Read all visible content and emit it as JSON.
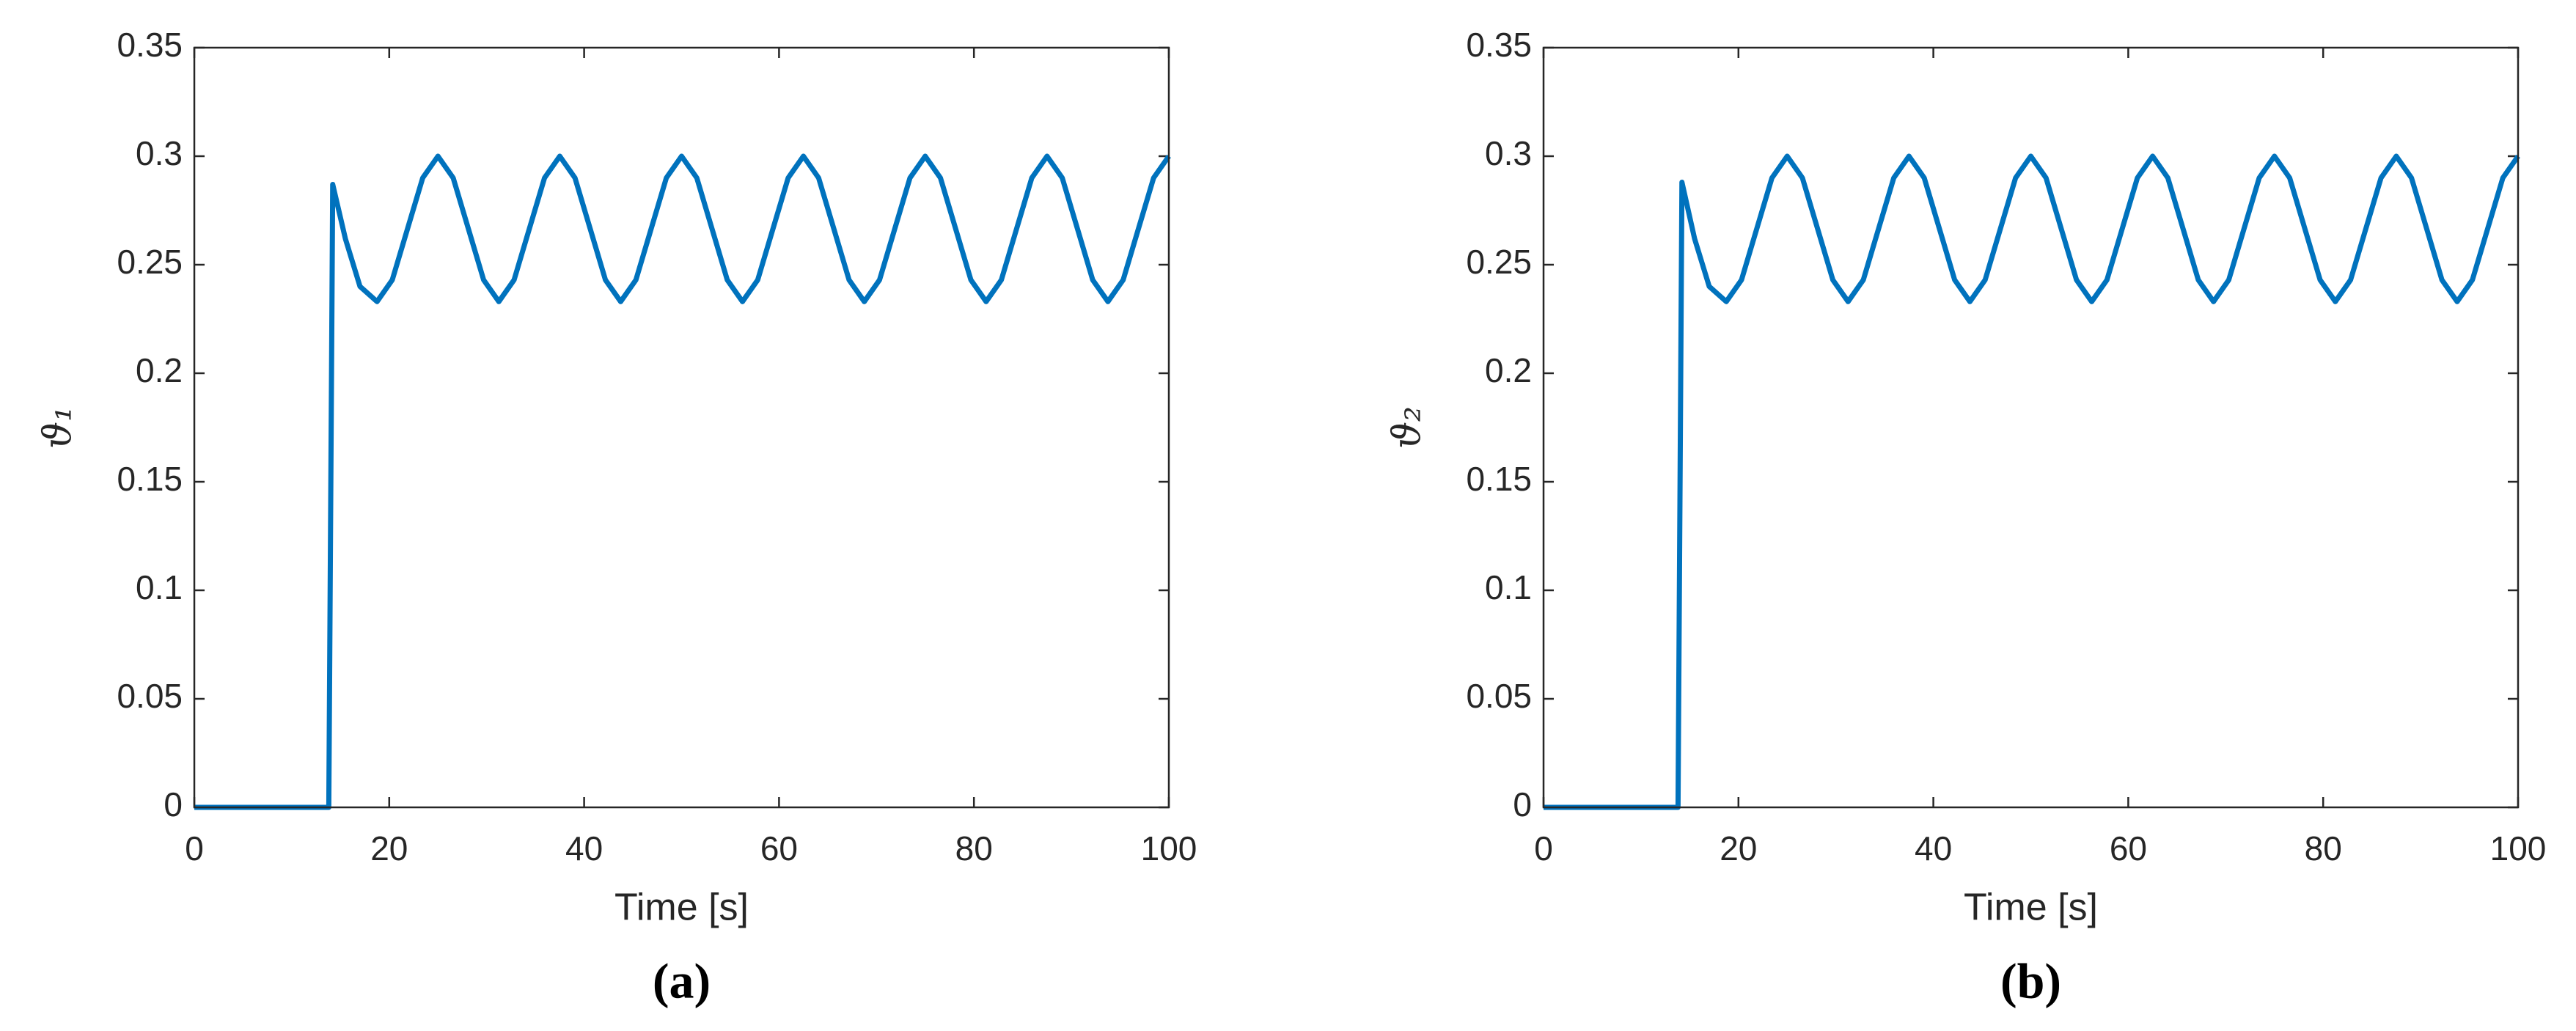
{
  "chart_data": [
    {
      "type": "line",
      "caption": "(a)",
      "xlabel": "Time [s]",
      "ylabel": "ϑ₁",
      "color": "#0072bd",
      "xlim": [
        0,
        100
      ],
      "xticks": [
        0,
        20,
        40,
        60,
        80,
        100
      ],
      "ylim": [
        0,
        0.35
      ],
      "yticks": [
        0,
        0.05,
        0.1,
        0.15,
        0.2,
        0.25,
        0.3,
        0.35
      ],
      "grid": false,
      "x": [
        0,
        13.8,
        14.2,
        15.5,
        17,
        18.75,
        20.3125,
        21.875,
        23.4375,
        25,
        26.5625,
        28.125,
        29.6875,
        31.25,
        32.8125,
        34.375,
        35.9375,
        37.5,
        39.0625,
        40.625,
        42.1875,
        43.75,
        45.3125,
        46.875,
        48.4375,
        50,
        51.5625,
        53.125,
        54.6875,
        56.25,
        57.8125,
        59.375,
        60.9375,
        62.5,
        64.0625,
        65.625,
        67.1875,
        68.75,
        70.3125,
        71.875,
        73.4375,
        75,
        76.5625,
        78.125,
        79.6875,
        81.25,
        82.8125,
        84.375,
        85.9375,
        87.5,
        89.0625,
        90.625,
        92.1875,
        93.75,
        95.3125,
        96.875,
        98.4375,
        100
      ],
      "values": [
        0,
        0,
        0.287,
        0.262,
        0.24,
        0.233,
        0.243,
        0.2665,
        0.29,
        0.3,
        0.29,
        0.2665,
        0.243,
        0.233,
        0.243,
        0.2665,
        0.29,
        0.3,
        0.29,
        0.2665,
        0.243,
        0.233,
        0.243,
        0.2665,
        0.29,
        0.3,
        0.29,
        0.2665,
        0.243,
        0.233,
        0.243,
        0.2665,
        0.29,
        0.3,
        0.29,
        0.2665,
        0.243,
        0.233,
        0.243,
        0.2665,
        0.29,
        0.3,
        0.29,
        0.2665,
        0.243,
        0.233,
        0.243,
        0.2665,
        0.29,
        0.3,
        0.29,
        0.2665,
        0.243,
        0.233,
        0.243,
        0.2665,
        0.29,
        0.3
      ]
    },
    {
      "type": "line",
      "caption": "(b)",
      "xlabel": "Time [s]",
      "ylabel": "ϑ₂",
      "color": "#0072bd",
      "xlim": [
        0,
        100
      ],
      "xticks": [
        0,
        20,
        40,
        60,
        80,
        100
      ],
      "ylim": [
        0,
        0.35
      ],
      "yticks": [
        0,
        0.05,
        0.1,
        0.15,
        0.2,
        0.25,
        0.3,
        0.35
      ],
      "grid": false,
      "x": [
        0,
        13.8,
        14.2,
        15.5,
        17,
        18.75,
        20.3125,
        21.875,
        23.4375,
        25,
        26.5625,
        28.125,
        29.6875,
        31.25,
        32.8125,
        34.375,
        35.9375,
        37.5,
        39.0625,
        40.625,
        42.1875,
        43.75,
        45.3125,
        46.875,
        48.4375,
        50,
        51.5625,
        53.125,
        54.6875,
        56.25,
        57.8125,
        59.375,
        60.9375,
        62.5,
        64.0625,
        65.625,
        67.1875,
        68.75,
        70.3125,
        71.875,
        73.4375,
        75,
        76.5625,
        78.125,
        79.6875,
        81.25,
        82.8125,
        84.375,
        85.9375,
        87.5,
        89.0625,
        90.625,
        92.1875,
        93.75,
        95.3125,
        96.875,
        98.4375,
        100
      ],
      "values": [
        0,
        0,
        0.288,
        0.262,
        0.24,
        0.233,
        0.243,
        0.2665,
        0.29,
        0.3,
        0.29,
        0.2665,
        0.243,
        0.233,
        0.243,
        0.2665,
        0.29,
        0.3,
        0.29,
        0.2665,
        0.243,
        0.233,
        0.243,
        0.2665,
        0.29,
        0.3,
        0.29,
        0.2665,
        0.243,
        0.233,
        0.243,
        0.2665,
        0.29,
        0.3,
        0.29,
        0.2665,
        0.243,
        0.233,
        0.243,
        0.2665,
        0.29,
        0.3,
        0.29,
        0.2665,
        0.243,
        0.233,
        0.243,
        0.2665,
        0.29,
        0.3,
        0.29,
        0.2665,
        0.243,
        0.233,
        0.243,
        0.2665,
        0.29,
        0.3
      ]
    }
  ]
}
